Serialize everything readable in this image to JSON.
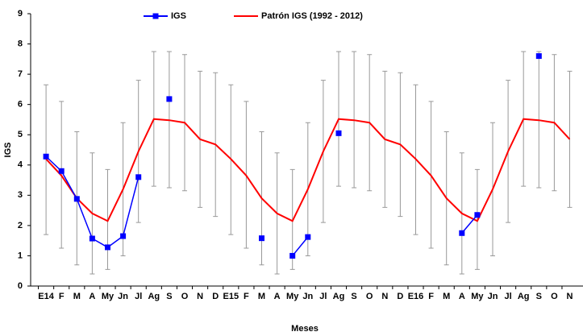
{
  "chart_data": {
    "type": "line",
    "x_label": "Meses",
    "y_label": "IGS",
    "categories": [
      "E14",
      "F",
      "M",
      "A",
      "My",
      "Jn",
      "Jl",
      "Ag",
      "S",
      "O",
      "N",
      "D",
      "E15",
      "F",
      "M",
      "A",
      "My",
      "Jn",
      "Jl",
      "Ag",
      "S",
      "O",
      "N",
      "D",
      "E16",
      "F",
      "M",
      "A",
      "My",
      "Jn",
      "Jl",
      "Ag",
      "S",
      "O",
      "N"
    ],
    "series": [
      {
        "name": "IGS",
        "color": "#0000ff",
        "marker": "square",
        "values": [
          4.28,
          3.8,
          2.88,
          1.57,
          1.28,
          1.65,
          3.6,
          null,
          6.18,
          null,
          null,
          null,
          null,
          null,
          1.58,
          null,
          1.0,
          1.62,
          null,
          5.05,
          null,
          null,
          null,
          null,
          null,
          null,
          null,
          1.75,
          2.35,
          null,
          null,
          null,
          7.6,
          null,
          null
        ]
      },
      {
        "name": "Patrón IGS (1992 - 2012)",
        "color": "#ff0000",
        "values": [
          4.2,
          3.65,
          2.9,
          2.4,
          2.15,
          3.2,
          4.45,
          5.52,
          5.48,
          5.4,
          4.85,
          4.68,
          4.2,
          3.65,
          2.9,
          2.4,
          2.15,
          3.2,
          4.45,
          5.52,
          5.48,
          5.4,
          4.85,
          4.68,
          4.2,
          3.65,
          2.9,
          2.4,
          2.15,
          3.2,
          4.45,
          5.52,
          5.48,
          5.4,
          4.85
        ],
        "upper": [
          6.65,
          6.1,
          5.1,
          4.4,
          3.85,
          5.4,
          6.8,
          7.75,
          7.75,
          7.65,
          7.1,
          7.05,
          6.65,
          6.1,
          5.1,
          4.4,
          3.85,
          5.4,
          6.8,
          7.75,
          7.75,
          7.65,
          7.1,
          7.05,
          6.65,
          6.1,
          5.1,
          4.4,
          3.85,
          5.4,
          6.8,
          7.75,
          7.75,
          7.65,
          7.1
        ],
        "lower": [
          1.7,
          1.25,
          0.7,
          0.4,
          0.55,
          1.0,
          2.1,
          3.3,
          3.25,
          3.15,
          2.6,
          2.3,
          1.7,
          1.25,
          0.7,
          0.4,
          0.55,
          1.0,
          2.1,
          3.3,
          3.25,
          3.15,
          2.6,
          2.3,
          1.7,
          1.25,
          0.7,
          0.4,
          0.55,
          1.0,
          2.1,
          3.3,
          3.25,
          3.15,
          2.6
        ],
        "error_color": "#999999"
      }
    ],
    "ylim": [
      0,
      9
    ],
    "yticks": [
      0,
      1,
      2,
      3,
      4,
      5,
      6,
      7,
      8,
      9
    ]
  }
}
